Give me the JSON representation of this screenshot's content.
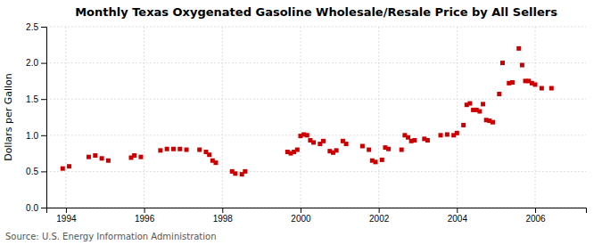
{
  "chart_data": {
    "type": "scatter",
    "title": "Monthly Texas Oxygenated Gasoline Wholesale/Resale Price by All Sellers",
    "ylabel": "Dollars per Gallon",
    "source": "Source: U.S. Energy Information Administration",
    "color": "#cc0000",
    "marker": "square",
    "grid": true,
    "xlim": [
      1993.5,
      2007.3
    ],
    "ylim": [
      0.0,
      2.5
    ],
    "xticks": [
      1994,
      1996,
      1998,
      2000,
      2002,
      2004,
      2006
    ],
    "yticks": [
      {
        "value": 0.0,
        "label": "0.0"
      },
      0.5,
      {
        "value": 1.0,
        "label": "1.0"
      },
      1.5,
      {
        "value": 2.0,
        "label": "2.0"
      },
      2.5
    ],
    "x": [
      1993.917,
      1994.083,
      1994.583,
      1994.75,
      1994.917,
      1995.083,
      1995.667,
      1995.75,
      1995.917,
      1996.417,
      1996.583,
      1996.75,
      1996.917,
      1997.083,
      1997.417,
      1997.583,
      1997.667,
      1997.75,
      1997.833,
      1998.25,
      1998.333,
      1998.5,
      1998.583,
      1999.667,
      1999.75,
      1999.833,
      1999.917,
      2000.0,
      2000.083,
      2000.167,
      2000.25,
      2000.333,
      2000.5,
      2000.583,
      2000.75,
      2000.833,
      2000.917,
      2001.083,
      2001.167,
      2001.583,
      2001.75,
      2001.833,
      2001.917,
      2002.083,
      2002.167,
      2002.25,
      2002.583,
      2002.667,
      2002.75,
      2002.833,
      2002.917,
      2003.167,
      2003.25,
      2003.583,
      2003.75,
      2003.917,
      2004.0,
      2004.167,
      2004.25,
      2004.333,
      2004.417,
      2004.5,
      2004.583,
      2004.667,
      2004.75,
      2004.833,
      2004.917,
      2005.083,
      2005.167,
      2005.333,
      2005.417,
      2005.583,
      2005.667,
      2005.75,
      2005.833,
      2005.917,
      2006.0,
      2006.167,
      2006.417
    ],
    "values": [
      0.54,
      0.57,
      0.7,
      0.72,
      0.68,
      0.65,
      0.69,
      0.72,
      0.7,
      0.79,
      0.81,
      0.81,
      0.81,
      0.8,
      0.8,
      0.77,
      0.73,
      0.65,
      0.62,
      0.5,
      0.47,
      0.46,
      0.5,
      0.77,
      0.75,
      0.77,
      0.8,
      0.99,
      1.01,
      1.0,
      0.93,
      0.9,
      0.88,
      0.92,
      0.78,
      0.76,
      0.79,
      0.92,
      0.88,
      0.85,
      0.8,
      0.65,
      0.63,
      0.66,
      0.83,
      0.81,
      0.8,
      1.0,
      0.97,
      0.92,
      0.93,
      0.95,
      0.93,
      1.0,
      1.01,
      1.0,
      1.03,
      1.14,
      1.42,
      1.44,
      1.35,
      1.35,
      1.33,
      1.43,
      1.21,
      1.2,
      1.18,
      1.57,
      2.0,
      1.72,
      1.73,
      2.2,
      1.97,
      1.75,
      1.75,
      1.72,
      1.7,
      1.65,
      1.65
    ]
  }
}
